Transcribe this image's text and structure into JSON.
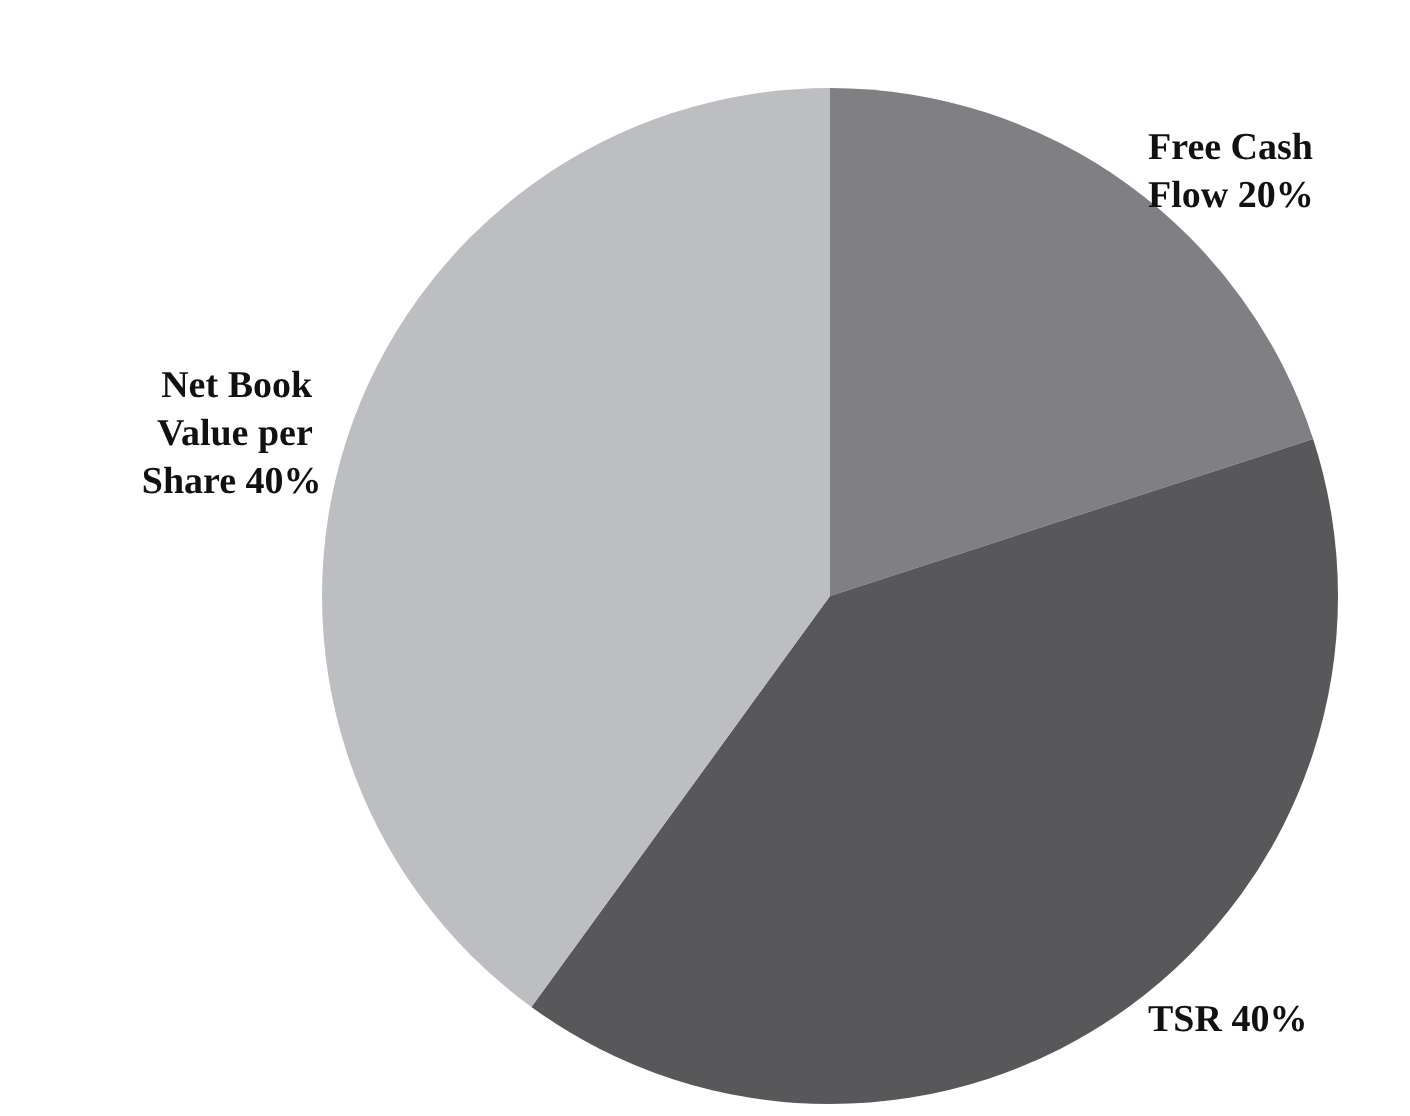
{
  "chart_data": {
    "type": "pie",
    "categories": [
      "Free Cash Flow",
      "TSR",
      "Net Book Value per Share"
    ],
    "values": [
      20,
      40,
      40
    ],
    "value_labels": [
      "20%",
      "40%",
      "40%"
    ],
    "colors": [
      "#808084",
      "#58585a",
      "#bdbec2"
    ],
    "legend": false
  }
}
